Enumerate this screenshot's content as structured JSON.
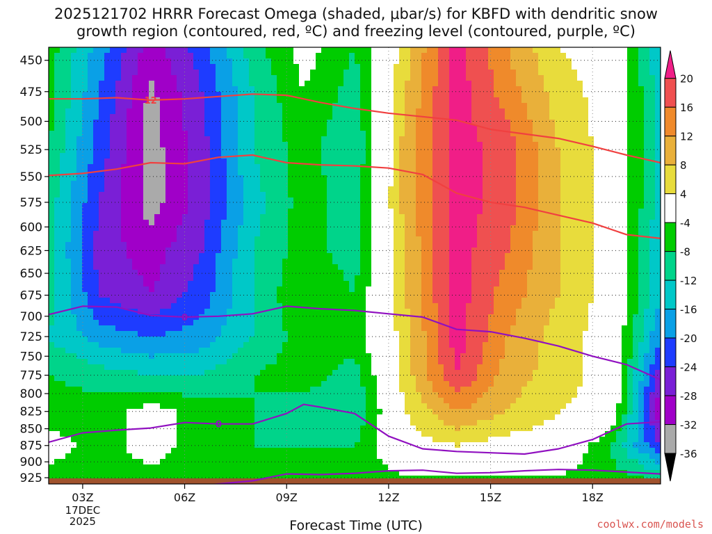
{
  "title_line1": "2025121702 HRRR Forecast Omega (shaded, μbar/s) for KBFD with dendritic snow",
  "title_line2": "growth region (contoured, red, ºC) and freezing level (contoured, purple, ºC)",
  "credit": "coolwx.com/models",
  "colors": {
    "bins": [
      "#f01e87",
      "#ef5050",
      "#ef8a2b",
      "#e9b03a",
      "#e8dc3c",
      "#ffffff",
      "#00cc00",
      "#00d48a",
      "#00c8c8",
      "#0aa0e6",
      "#1e3cff",
      "#7a1fd6",
      "#a000c8",
      "#aaaaaa",
      "#000000"
    ],
    "dgz_line": "#f04040",
    "freezing_line": "#9010c0",
    "ground": "#a0522d"
  },
  "chart_data": {
    "type": "heatmap",
    "title": "2025121702 HRRR Forecast Omega (shaded, μbar/s) for KBFD with dendritic snow growth region (contoured, red, ºC) and freezing level (contoured, purple, ºC)",
    "xlabel": "Forecast Time (UTC)",
    "ylabel": "",
    "x_ticks": [
      "03Z",
      "06Z",
      "09Z",
      "12Z",
      "15Z",
      "18Z"
    ],
    "x_tick_hours": [
      3,
      6,
      9,
      12,
      15,
      18
    ],
    "x_date_label": [
      "17DEC",
      "2025"
    ],
    "xlim": [
      2,
      20
    ],
    "y_ticks": [
      450,
      475,
      500,
      525,
      550,
      575,
      600,
      625,
      650,
      675,
      700,
      725,
      750,
      775,
      800,
      825,
      850,
      875,
      900,
      925
    ],
    "ylim": [
      440,
      935
    ],
    "y_scale": "log",
    "grid": true,
    "colorbar_labels": [
      20,
      16,
      12,
      8,
      4,
      -4,
      -8,
      -12,
      -16,
      -20,
      -24,
      -28,
      -32,
      -36
    ],
    "omega_field": {
      "x": [
        2.0,
        3.5,
        5.0,
        6.5,
        8.0,
        9.5,
        11.0,
        12.5,
        14.0,
        15.5,
        17.0,
        18.5,
        20.0
      ],
      "pressure": [
        440,
        475,
        525,
        575,
        625,
        675,
        725,
        775,
        825,
        875,
        935
      ],
      "values": [
        [
          -6,
          -18,
          -30,
          -22,
          -10,
          -2,
          -8,
          6,
          22,
          12,
          4,
          2,
          -16
        ],
        [
          -6,
          -20,
          -33,
          -24,
          -12,
          -4,
          -10,
          8,
          22,
          14,
          6,
          2,
          -14
        ],
        [
          -8,
          -22,
          -34,
          -26,
          -12,
          -6,
          -12,
          10,
          22,
          18,
          8,
          2,
          -14
        ],
        [
          -10,
          -24,
          -34,
          -26,
          -14,
          -6,
          -10,
          10,
          22,
          18,
          8,
          2,
          -14
        ],
        [
          -10,
          -26,
          -30,
          -24,
          -12,
          -6,
          -10,
          8,
          22,
          16,
          8,
          2,
          -16
        ],
        [
          -10,
          -24,
          -28,
          -22,
          -12,
          -4,
          -8,
          8,
          22,
          14,
          8,
          2,
          -16
        ],
        [
          -12,
          -18,
          -20,
          -18,
          -12,
          -6,
          -6,
          6,
          22,
          12,
          6,
          2,
          -20
        ],
        [
          -8,
          -10,
          -12,
          -12,
          -8,
          -6,
          -10,
          6,
          20,
          10,
          6,
          2,
          -26
        ],
        [
          -6,
          -6,
          -2,
          -6,
          -8,
          -10,
          -12,
          4,
          12,
          8,
          4,
          2,
          -32
        ],
        [
          -2,
          -6,
          -2,
          -6,
          -8,
          -8,
          -8,
          2,
          4,
          2,
          2,
          -8,
          -24
        ],
        [
          -6,
          -6,
          -6,
          -6,
          -6,
          -6,
          -6,
          -6,
          -6,
          -6,
          -6,
          -6,
          -6
        ]
      ]
    },
    "series": [
      {
        "name": "",
        "color": "red",
        "label": "12",
        "x": [
          2.0,
          3.0,
          4.0,
          5.0,
          6.0,
          7.0,
          8.0,
          9.0,
          10.0,
          11.0,
          12.0,
          13.0,
          14.0,
          15.0,
          16.0,
          17.0,
          18.0,
          19.0,
          20.0
        ],
        "pressure": [
          481,
          481,
          480,
          482,
          481,
          479,
          477,
          478,
          484,
          489,
          493,
          496,
          499,
          507,
          511,
          515,
          522,
          530,
          537
        ]
      },
      {
        "name": "",
        "color": "red",
        "label": "",
        "x": [
          2.0,
          3.0,
          4.0,
          5.0,
          6.0,
          7.0,
          8.0,
          9.0,
          10.0,
          11.0,
          12.0,
          13.0,
          14.0,
          15.0,
          16.0,
          17.0,
          18.0,
          19.0,
          20.0
        ],
        "pressure": [
          549,
          547,
          543,
          537,
          538,
          532,
          530,
          537,
          539,
          540,
          542,
          548,
          566,
          575,
          580,
          588,
          596,
          608,
          612
        ]
      },
      {
        "name": "",
        "color": "purple",
        "label": "0",
        "x": [
          2.0,
          3.0,
          4.0,
          5.0,
          6.0,
          7.0,
          8.0,
          9.0,
          10.0,
          11.0,
          12.0,
          13.0,
          14.0,
          15.0,
          16.0,
          17.0,
          18.0,
          19.0,
          20.0
        ],
        "pressure": [
          698,
          688,
          689,
          699,
          701,
          700,
          697,
          688,
          691,
          693,
          697,
          701,
          716,
          719,
          727,
          737,
          750,
          761,
          781
        ]
      },
      {
        "name": "",
        "color": "purple",
        "label": "0",
        "x": [
          2.0,
          3.0,
          4.0,
          5.0,
          6.0,
          7.0,
          8.0,
          9.0,
          9.5,
          10.0,
          11.0,
          12.0,
          13.0,
          14.0,
          15.0,
          16.0,
          17.0,
          18.0,
          19.0,
          20.0
        ],
        "pressure": [
          870,
          856,
          852,
          849,
          841,
          843,
          843,
          828,
          815,
          819,
          828,
          861,
          880,
          884,
          886,
          888,
          880,
          866,
          843,
          840
        ]
      },
      {
        "name": "",
        "color": "purple",
        "label": "",
        "x": [
          6.0,
          7.0,
          8.0,
          9.0,
          10.0,
          11.0,
          12.0,
          13.0,
          14.0,
          15.0,
          16.0,
          17.0,
          18.0,
          19.0,
          20.0
        ],
        "pressure": [
          940,
          935,
          930,
          919,
          920,
          918,
          914,
          913,
          918,
          917,
          914,
          912,
          913,
          916,
          919
        ]
      }
    ]
  }
}
